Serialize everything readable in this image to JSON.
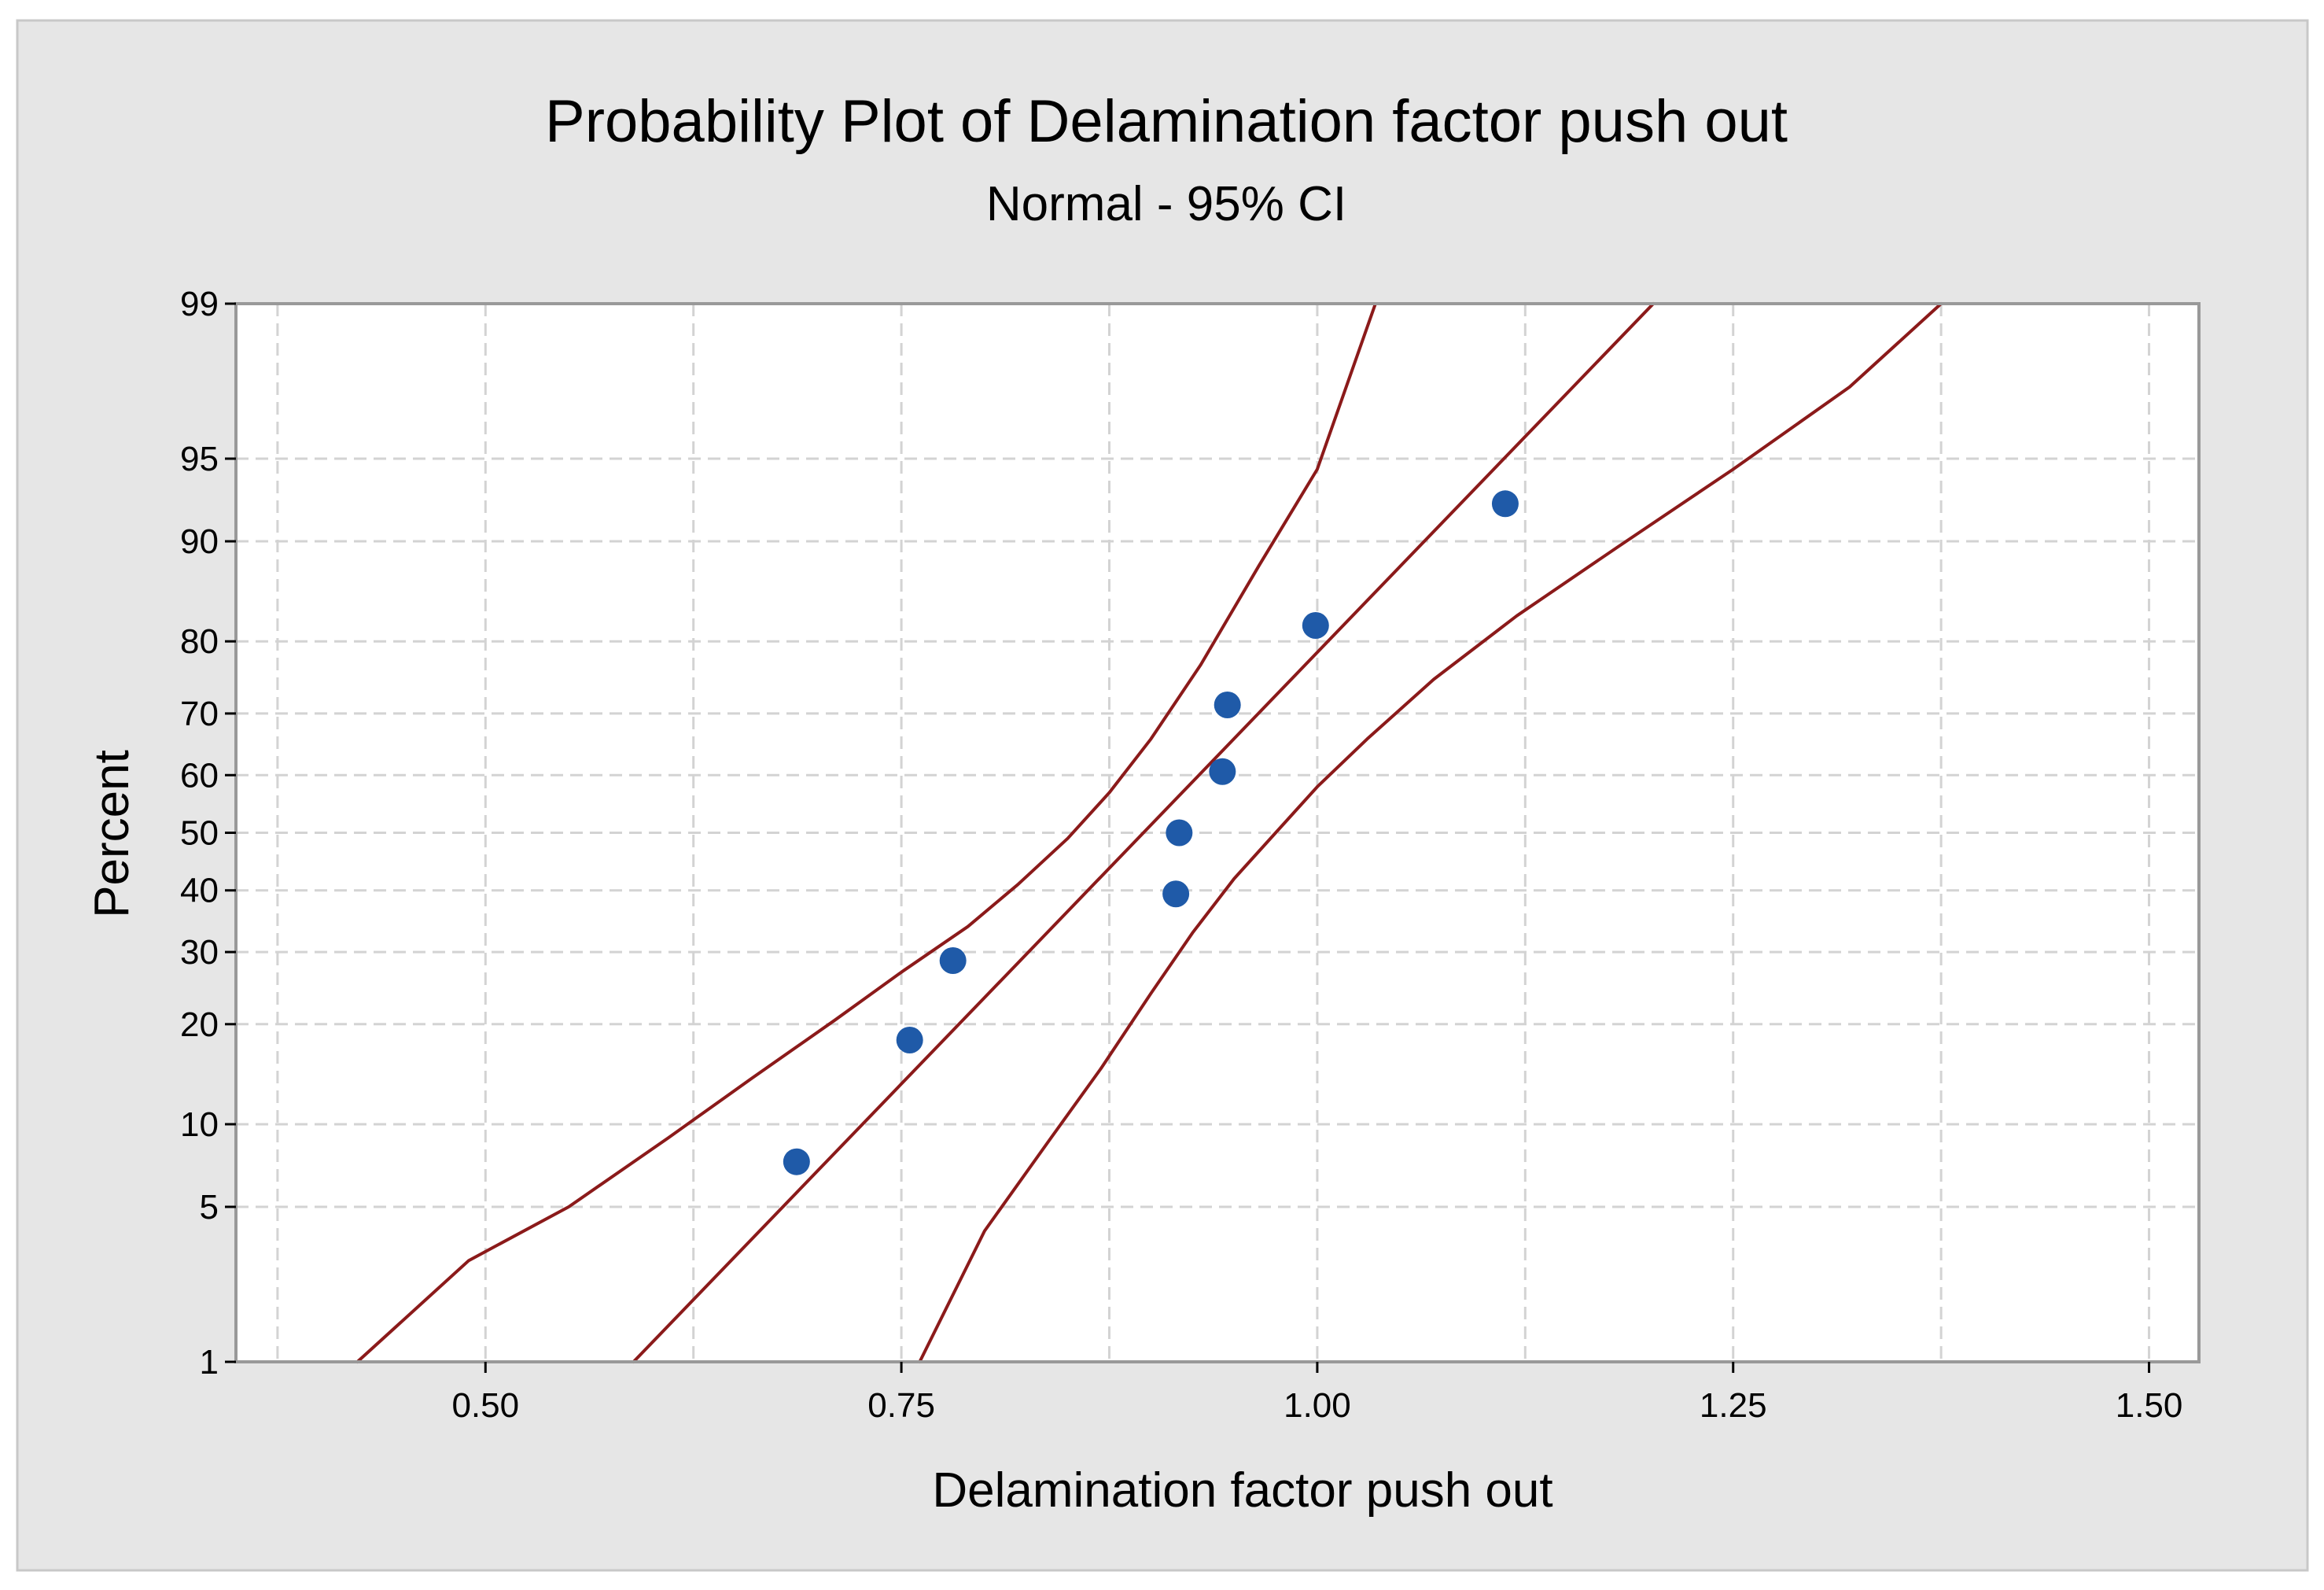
{
  "chart_data": {
    "type": "scatter",
    "title": "Probability Plot of Delamination factor push out",
    "subtitle": "Normal - 95% CI",
    "xlabel": "Delamination factor push out",
    "ylabel": "Percent",
    "xlim": [
      0.35,
      1.53
    ],
    "ylim": [
      1,
      99
    ],
    "x_ticks": [
      0.5,
      0.75,
      1.0,
      1.25,
      1.5
    ],
    "x_tick_labels": [
      "0.50",
      "0.75",
      "1.00",
      "1.25",
      "1.50"
    ],
    "y_ticks": [
      1,
      5,
      10,
      20,
      30,
      40,
      50,
      60,
      70,
      80,
      90,
      95,
      99
    ],
    "y_tick_labels": [
      "1",
      "5",
      "10",
      "20",
      "30",
      "40",
      "50",
      "60",
      "70",
      "80",
      "90",
      "95",
      "99"
    ],
    "x_grid": [
      0.375,
      0.5,
      0.625,
      0.75,
      0.875,
      1.0,
      1.125,
      1.25,
      1.375,
      1.5
    ],
    "grid": true,
    "points": {
      "x": [
        0.687,
        0.755,
        0.781,
        0.915,
        0.917,
        0.943,
        0.946,
        0.999,
        1.113
      ],
      "y": [
        7.4,
        18.1,
        28.7,
        39.4,
        50.0,
        60.6,
        71.3,
        81.9,
        92.6
      ],
      "color": "#1f5aa8"
    },
    "fit_line": {
      "x": [
        0.589,
        1.202
      ],
      "y": [
        1,
        99
      ],
      "color": "#8b1a1a"
    },
    "ci_lower_bound": {
      "x": [
        0.761,
        0.8,
        0.84,
        0.87,
        0.9,
        0.925,
        0.95,
        0.975,
        1.0,
        1.03,
        1.07,
        1.12,
        1.18,
        1.25,
        1.32,
        1.375
      ],
      "y": [
        1,
        4,
        9,
        15,
        24,
        33,
        42,
        50,
        58,
        66,
        75,
        83,
        89.5,
        94.5,
        97.5,
        99
      ],
      "color": "#8b1a1a"
    },
    "ci_upper_bound": {
      "x": [
        0.423,
        0.49,
        0.55,
        0.61,
        0.66,
        0.71,
        0.75,
        0.79,
        0.82,
        0.85,
        0.875,
        0.9,
        0.93,
        0.965,
        1.0,
        1.035
      ],
      "y": [
        1,
        3,
        5,
        9,
        14,
        20.5,
        27,
        34,
        41,
        49,
        57,
        66,
        77,
        88,
        94.5,
        99
      ],
      "color": "#8b1a1a"
    },
    "colors": {
      "figure_background": "#e6e6e6",
      "plot_background": "#ffffff",
      "frame": "#999999",
      "grid": "#d3d3d3"
    }
  }
}
